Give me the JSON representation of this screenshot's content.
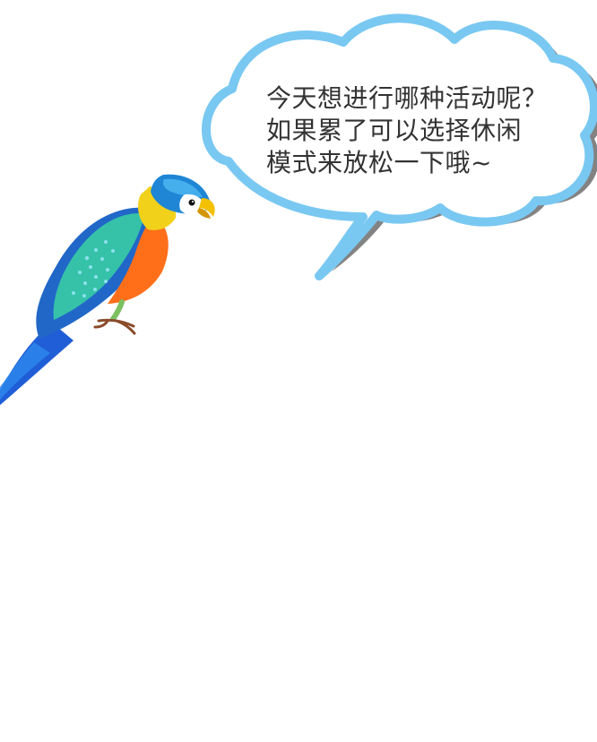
{
  "speech_bubble": {
    "lines": [
      "今天想进行哪种活动呢？",
      "如果累了可以选择休闲",
      "模式来放松一下哦~"
    ],
    "text_color": "#333333",
    "fill_color": "#ffffff",
    "border_color": "#79c8f2",
    "shadow_color": "#6d6d6d"
  },
  "character": {
    "name": "parrot-icon",
    "colors": {
      "head": "#1f86d6",
      "face": "#ffffff",
      "beak": "#f4c100",
      "body": "#36c2a8",
      "wing": "#2167c8",
      "breast": "#ff6f1a",
      "tail": "#1f5ed6",
      "feet": "#8a4b2a"
    }
  },
  "page": {
    "background": "#ffffff"
  }
}
